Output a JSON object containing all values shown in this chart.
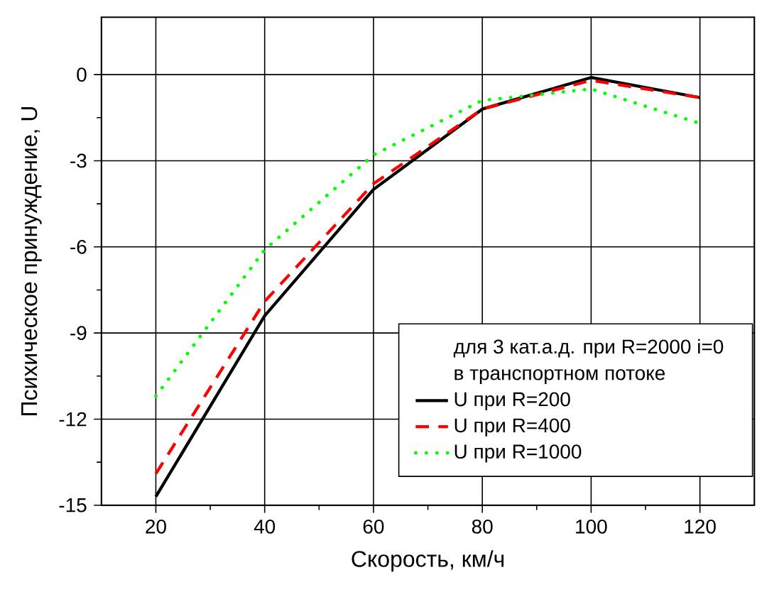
{
  "chart_data": {
    "type": "line",
    "xlabel": "Скорость, км/ч",
    "ylabel": "Психическое принуждение, U",
    "legend_title": "для 3 кат.а.д. при R=2000 i=0 в транспортном потоке",
    "x": [
      20,
      40,
      60,
      80,
      100,
      120
    ],
    "series": [
      {
        "name": "U при R=200",
        "color": "#000000",
        "line_style": "solid",
        "values": [
          -14.7,
          -8.4,
          -4.0,
          -1.2,
          -0.1,
          -0.8
        ]
      },
      {
        "name": "U при R=400",
        "color": "#ff0000",
        "line_style": "dashed",
        "values": [
          -13.9,
          -7.9,
          -3.8,
          -1.2,
          -0.2,
          -0.8
        ]
      },
      {
        "name": "U при R=1000",
        "color": "#00ff00",
        "line_style": "dotted",
        "values": [
          -11.2,
          -6.1,
          -2.8,
          -0.9,
          -0.5,
          -1.7
        ]
      }
    ],
    "xlim": [
      10,
      130
    ],
    "ylim": [
      -15,
      2
    ],
    "xticks": [
      20,
      40,
      60,
      80,
      100,
      120
    ],
    "yticks": [
      -15,
      -12,
      -9,
      -6,
      -3,
      0
    ],
    "grid": true,
    "legend": "bottom right",
    "marker": "none"
  }
}
